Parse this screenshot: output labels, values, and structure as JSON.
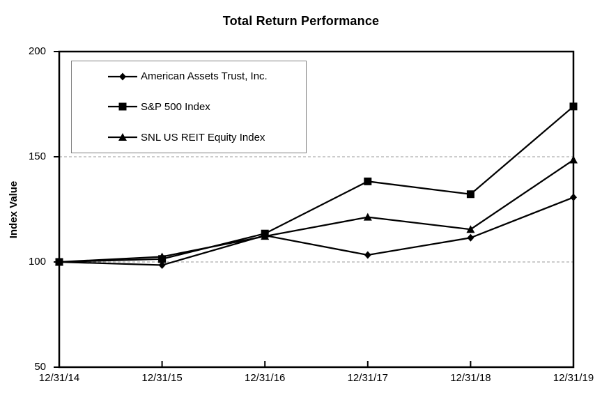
{
  "chart_data": {
    "type": "line",
    "title": "Total Return Performance",
    "xlabel": "",
    "ylabel": "Index Value",
    "x": [
      "12/31/14",
      "12/31/15",
      "12/31/16",
      "12/31/17",
      "12/31/18",
      "12/31/19"
    ],
    "series": [
      {
        "name": "American Assets Trust, Inc.",
        "marker": "diamond",
        "color": "#000000",
        "values": [
          100,
          98.5,
          112.6,
          103.3,
          111.5,
          130.7
        ]
      },
      {
        "name": "S&P 500 Index",
        "marker": "square",
        "color": "#000000",
        "values": [
          100,
          101.4,
          113.5,
          138.3,
          132.2,
          173.9
        ]
      },
      {
        "name": "SNL US REIT Equity Index",
        "marker": "triangle",
        "color": "#000000",
        "values": [
          100,
          102.5,
          112.2,
          121.3,
          115.5,
          148.5
        ]
      }
    ],
    "ylim": [
      50,
      200
    ],
    "yticks": [
      200,
      150,
      100,
      50
    ],
    "gridlines_at": [
      150,
      100
    ],
    "grid_style": "dashed-horizontal",
    "legend_position": "top-left-inside",
    "colors": {
      "line": "#000000",
      "axis": "#000000",
      "grid": "#999999",
      "legend_border": "#7f7f7f",
      "text": "#000000",
      "background": "#ffffff"
    }
  }
}
